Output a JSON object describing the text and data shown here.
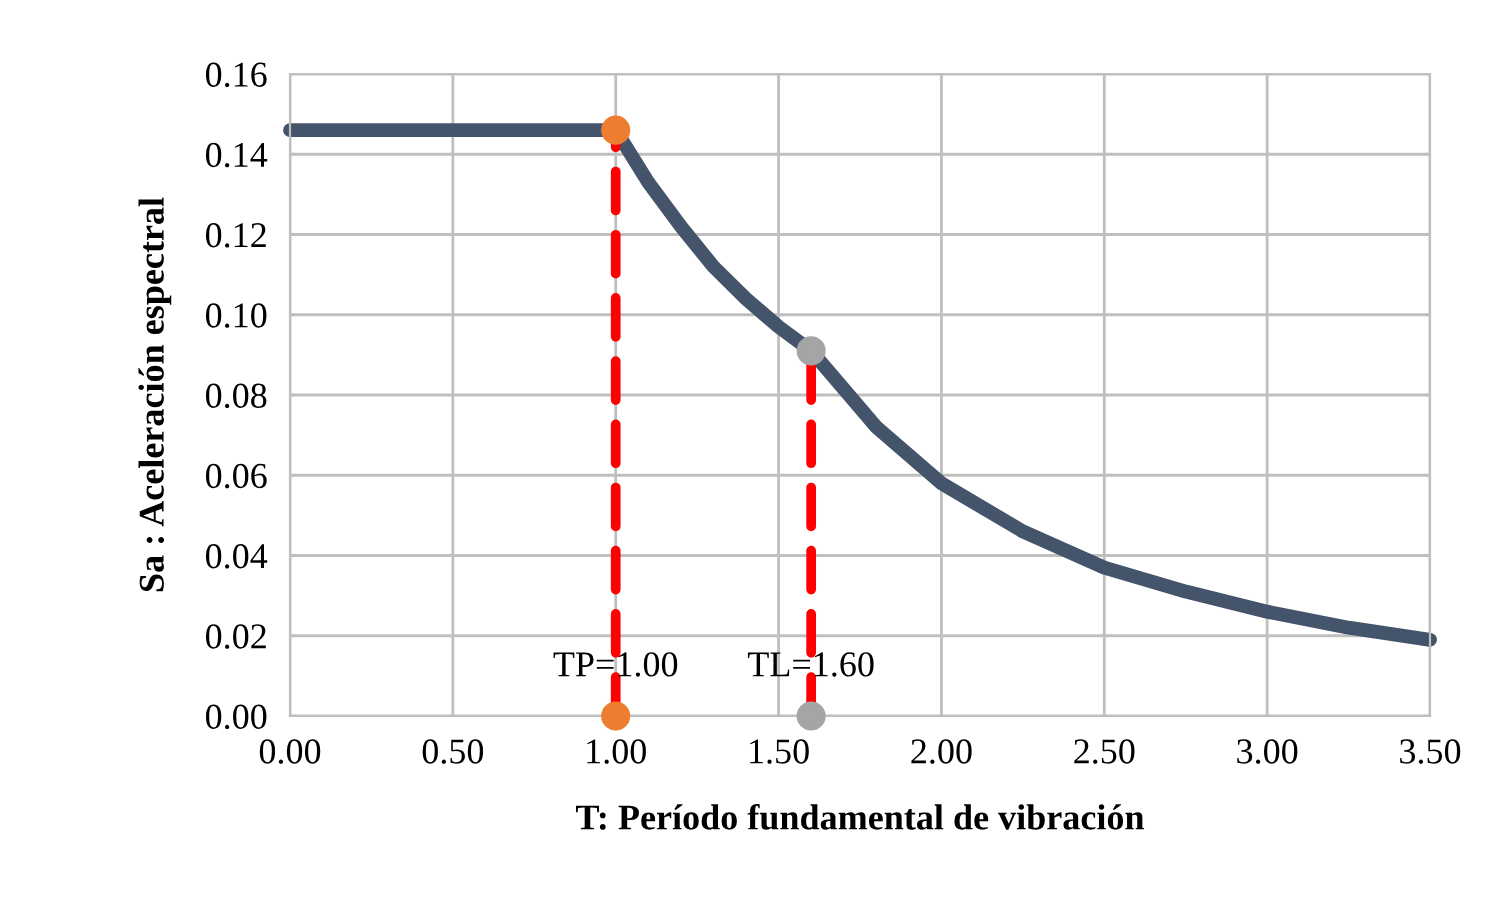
{
  "chart_data": {
    "type": "line",
    "xlabel": "T: Período fundamental de vibración",
    "ylabel": "Sa : Aceleración espectral",
    "xlim": [
      0,
      3.5
    ],
    "xticks": [
      {
        "value": 0,
        "label": "0.00"
      },
      {
        "value": 0.5,
        "label": "0.50"
      },
      {
        "value": 1,
        "label": "1.00"
      },
      {
        "value": 1.5,
        "label": "1.50"
      },
      {
        "value": 2,
        "label": "2.00"
      },
      {
        "value": 2.5,
        "label": "2.50"
      },
      {
        "value": 3,
        "label": "3.00"
      },
      {
        "value": 3.5,
        "label": "3.50"
      }
    ],
    "ylim": [
      0,
      0.16
    ],
    "yticks": [
      {
        "value": 0,
        "label": "0.00"
      },
      {
        "value": 0.02,
        "label": "0.02"
      },
      {
        "value": 0.04,
        "label": "0.04"
      },
      {
        "value": 0.06,
        "label": "0.06"
      },
      {
        "value": 0.08,
        "label": "0.08"
      },
      {
        "value": 0.1,
        "label": "0.10"
      },
      {
        "value": 0.12,
        "label": "0.12"
      },
      {
        "value": 0.14,
        "label": "0.14"
      },
      {
        "value": 0.16,
        "label": "0.16"
      }
    ],
    "grid": true,
    "series": [
      {
        "type": "line",
        "color": "#44546a",
        "line_style": "solid",
        "x": [
          0,
          1.0,
          1.1,
          1.2,
          1.3,
          1.4,
          1.5,
          1.6,
          1.8,
          2.0,
          2.25,
          2.5,
          2.75,
          3.0,
          3.25,
          3.5
        ],
        "values": [
          0.146,
          0.146,
          0.133,
          0.122,
          0.112,
          0.104,
          0.097,
          0.091,
          0.072,
          0.058,
          0.046,
          0.037,
          0.031,
          0.026,
          0.022,
          0.019
        ]
      },
      {
        "type": "line",
        "color": "#ff0000",
        "line_style": "dashed",
        "x": [
          1.0,
          1.0
        ],
        "values": [
          0,
          0.146
        ]
      },
      {
        "type": "line",
        "color": "#ff0000",
        "line_style": "dashed",
        "x": [
          1.6,
          1.6
        ],
        "values": [
          0,
          0.091
        ]
      },
      {
        "type": "scatter",
        "color": "#ed7d31",
        "marker": "circle",
        "x": [
          1.0,
          1.0
        ],
        "values": [
          0.146,
          0
        ]
      },
      {
        "type": "scatter",
        "color": "#a5a5a5",
        "marker": "circle",
        "x": [
          1.6,
          1.6
        ],
        "values": [
          0.091,
          0
        ]
      }
    ],
    "annotations": [
      {
        "text": "TP=1.00",
        "x": 1.0,
        "y": 0.008
      },
      {
        "text": "TL=1.60",
        "x": 1.6,
        "y": 0.008
      }
    ]
  }
}
